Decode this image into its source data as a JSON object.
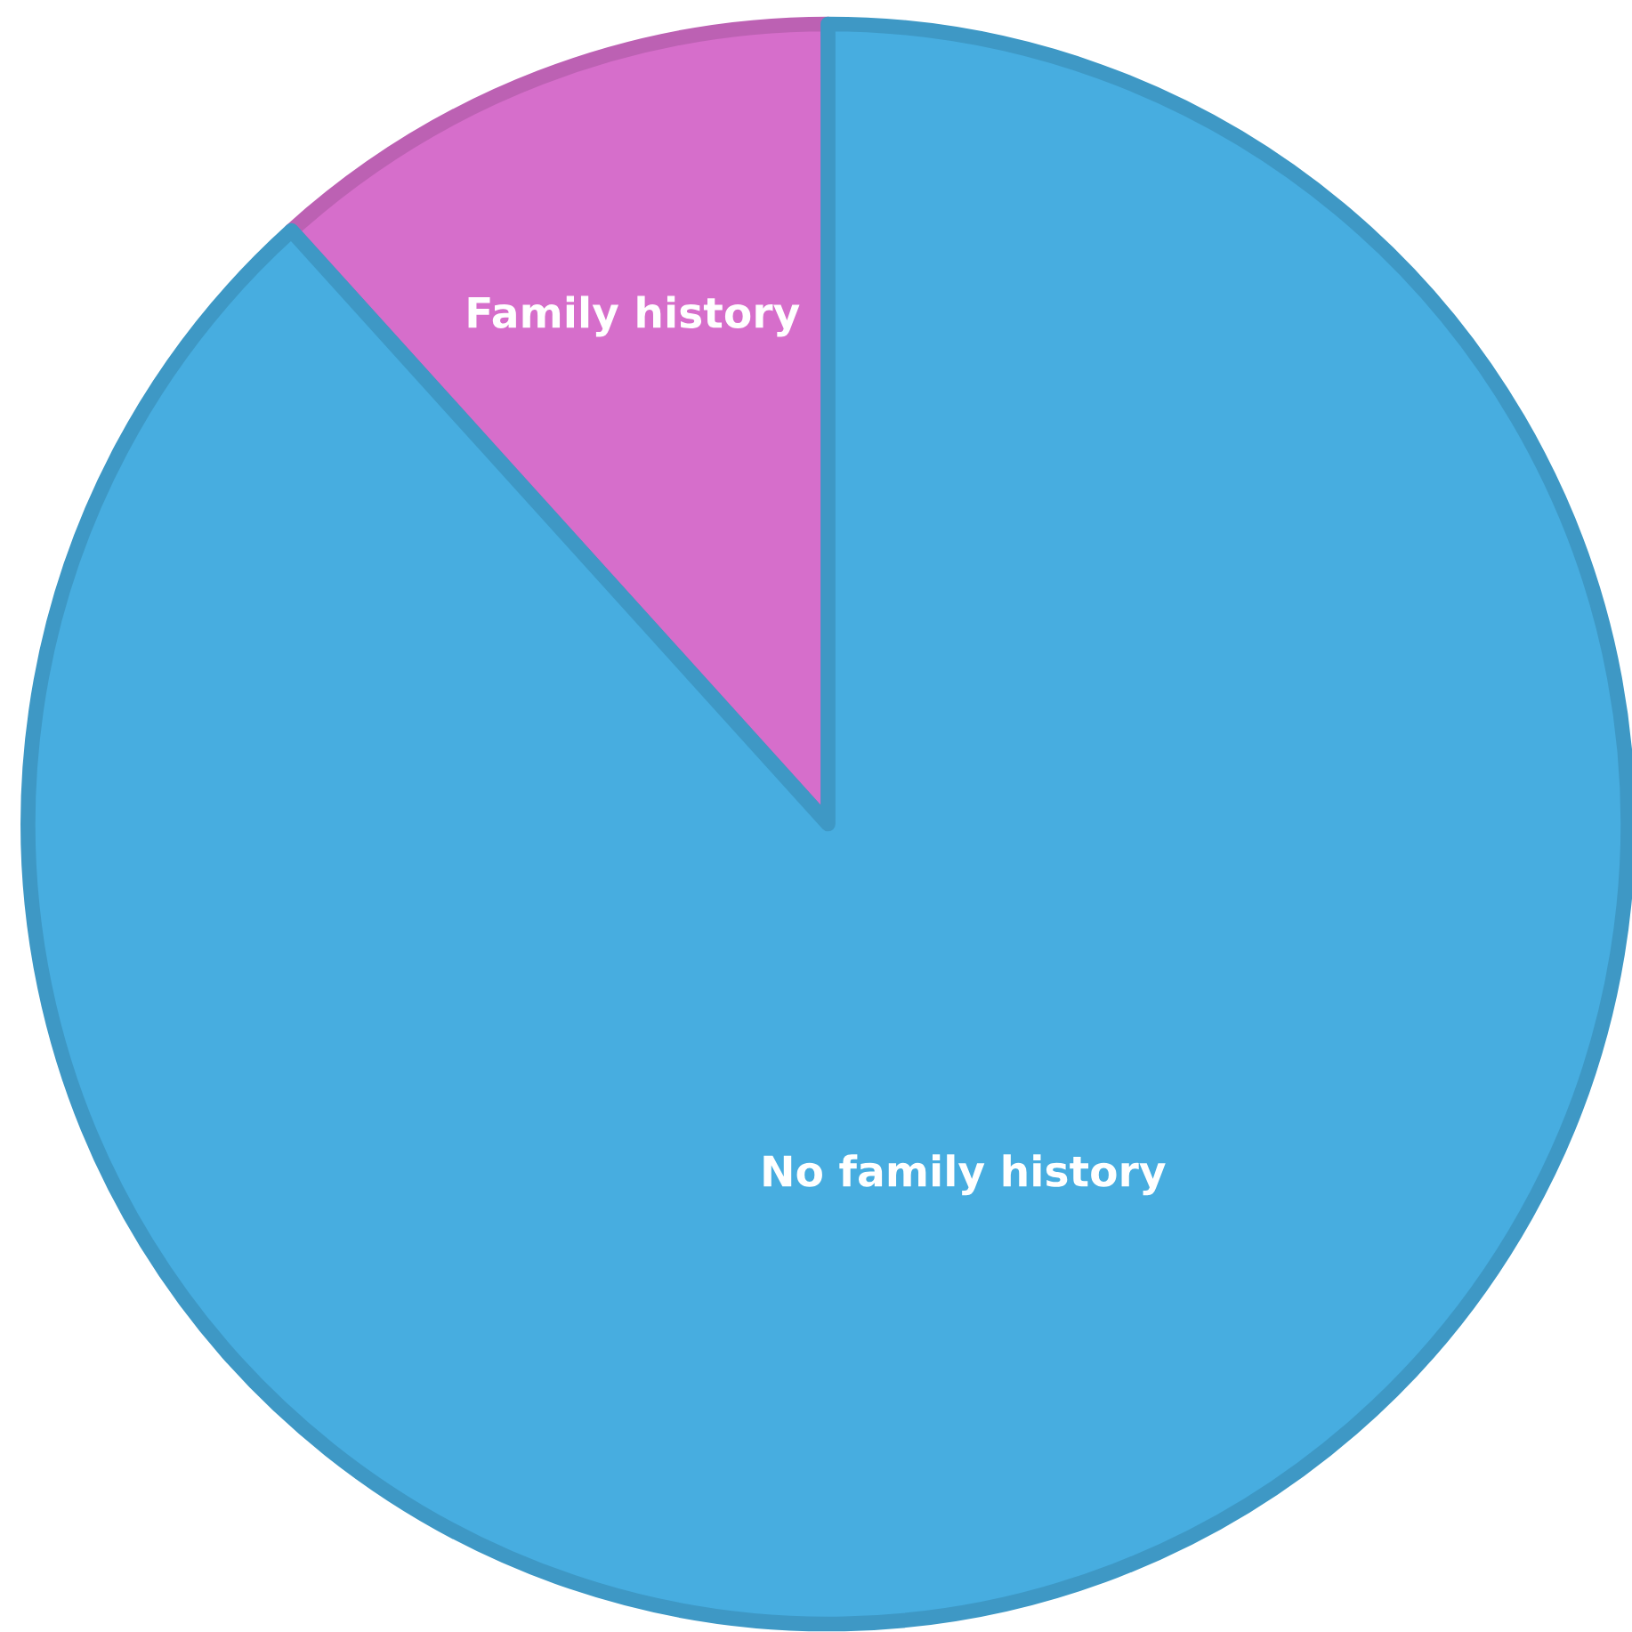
{
  "chart_data": {
    "type": "pie",
    "categories": [
      "Family history",
      "No family history"
    ],
    "values": [
      11.7,
      88.3
    ],
    "colors": [
      "#d66ecb",
      "#47ade0"
    ]
  }
}
